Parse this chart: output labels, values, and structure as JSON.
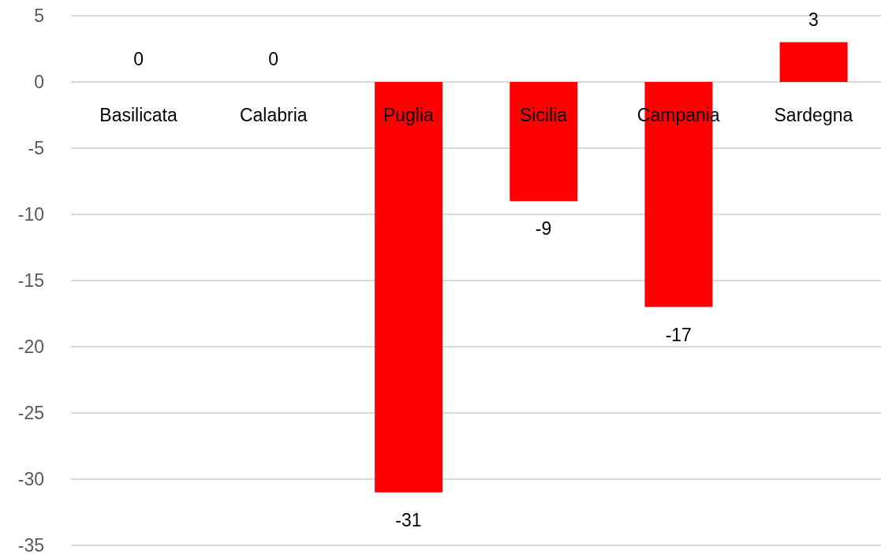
{
  "chart_data": {
    "type": "bar",
    "categories": [
      "Basilicata",
      "Calabria",
      "Puglia",
      "Sicilia",
      "Campania",
      "Sardegna"
    ],
    "values": [
      0,
      0,
      -31,
      -9,
      -17,
      3
    ],
    "color": "#ff0000",
    "ylim": [
      -35,
      5
    ],
    "yticks": [
      -35,
      -30,
      -25,
      -20,
      -15,
      -10,
      -5,
      0,
      5
    ],
    "grid": "y",
    "data_labels": true
  }
}
